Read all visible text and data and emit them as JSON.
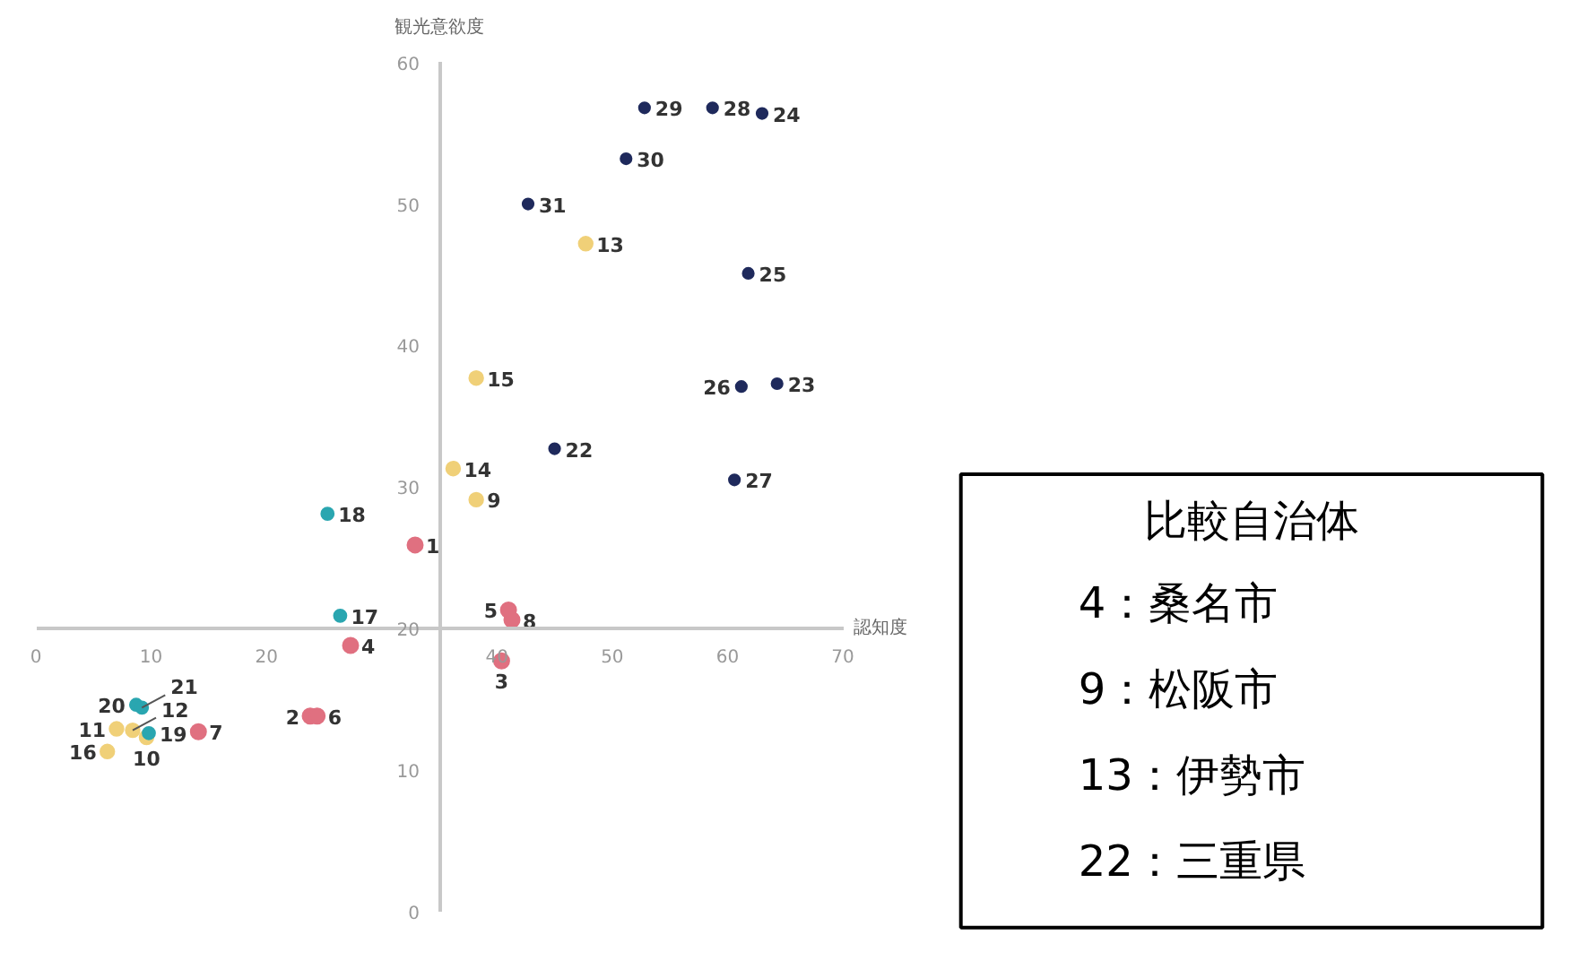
{
  "chart_data": [
    {
      "type": "scatter",
      "xlabel": "認知度",
      "ylabel": "観光意欲度",
      "xlim": [
        0,
        70
      ],
      "ylim": [
        0,
        60
      ],
      "xticks": [
        0,
        10,
        20,
        40,
        50,
        60,
        70
      ],
      "yticks": [
        0,
        10,
        20,
        30,
        40,
        50,
        60
      ],
      "grid": false,
      "marker": "circle",
      "series": [
        {
          "color": "#e07080",
          "x": [
            32.9,
            23.8,
            40.4,
            27.3,
            41.0,
            24.4,
            14.1,
            41.3
          ],
          "values": [
            25.9,
            13.8,
            17.7,
            18.8,
            21.3,
            13.8,
            12.7,
            20.6
          ]
        },
        {
          "color": "#f0d078",
          "x": [
            38.2,
            9.6,
            7.0,
            8.4,
            47.7,
            36.2,
            38.2,
            6.2
          ],
          "values": [
            29.1,
            12.3,
            12.9,
            12.8,
            47.2,
            31.3,
            37.7,
            11.3
          ]
        },
        {
          "color": "#2aa6b0",
          "x": [
            26.4,
            25.3,
            9.8,
            8.7,
            9.2
          ],
          "values": [
            20.9,
            28.1,
            12.6,
            14.6,
            14.4
          ]
        },
        {
          "color": "#1f2a5c",
          "x": [
            45.0,
            64.3,
            63.0,
            61.8,
            61.2,
            60.6,
            58.7,
            52.8,
            51.2,
            42.7
          ],
          "values": [
            32.7,
            37.3,
            56.4,
            45.1,
            37.1,
            30.5,
            56.8,
            56.8,
            53.2,
            50.0
          ]
        }
      ],
      "annotations": [
        {
          "text": "1",
          "x": 32.9,
          "y": 25.9
        },
        {
          "text": "2",
          "x": 23.8,
          "y": 13.8
        },
        {
          "text": "3",
          "x": 40.4,
          "y": 17.7
        },
        {
          "text": "4",
          "x": 27.3,
          "y": 18.8
        },
        {
          "text": "5",
          "x": 41.0,
          "y": 21.3
        },
        {
          "text": "6",
          "x": 24.4,
          "y": 13.8
        },
        {
          "text": "7",
          "x": 14.1,
          "y": 12.7
        },
        {
          "text": "8",
          "x": 41.3,
          "y": 20.6
        },
        {
          "text": "9",
          "x": 38.2,
          "y": 29.1
        },
        {
          "text": "10",
          "x": 9.6,
          "y": 12.3
        },
        {
          "text": "11",
          "x": 7.0,
          "y": 12.9
        },
        {
          "text": "12",
          "x": 8.4,
          "y": 12.8
        },
        {
          "text": "13",
          "x": 47.7,
          "y": 47.2
        },
        {
          "text": "14",
          "x": 36.2,
          "y": 31.3
        },
        {
          "text": "15",
          "x": 38.2,
          "y": 37.7
        },
        {
          "text": "16",
          "x": 6.2,
          "y": 11.3
        },
        {
          "text": "17",
          "x": 26.4,
          "y": 20.9
        },
        {
          "text": "18",
          "x": 25.3,
          "y": 28.1
        },
        {
          "text": "19",
          "x": 9.8,
          "y": 12.6
        },
        {
          "text": "20",
          "x": 8.7,
          "y": 14.6
        },
        {
          "text": "21",
          "x": 9.2,
          "y": 14.4
        },
        {
          "text": "22",
          "x": 45.0,
          "y": 32.7
        },
        {
          "text": "23",
          "x": 64.3,
          "y": 37.3
        },
        {
          "text": "24",
          "x": 63.0,
          "y": 56.4
        },
        {
          "text": "25",
          "x": 61.8,
          "y": 45.1
        },
        {
          "text": "26",
          "x": 61.2,
          "y": 37.1
        },
        {
          "text": "27",
          "x": 60.6,
          "y": 30.5
        },
        {
          "text": "28",
          "x": 58.7,
          "y": 56.8
        },
        {
          "text": "29",
          "x": 52.8,
          "y": 56.8
        },
        {
          "text": "30",
          "x": 51.2,
          "y": 53.2
        },
        {
          "text": "31",
          "x": 42.7,
          "y": 50.0
        }
      ]
    },
    {
      "type": "other",
      "title": "比較自治体",
      "annotations": [
        "4：桑名市",
        "9：松阪市",
        "13：伊勢市",
        "22：三重県"
      ]
    }
  ]
}
